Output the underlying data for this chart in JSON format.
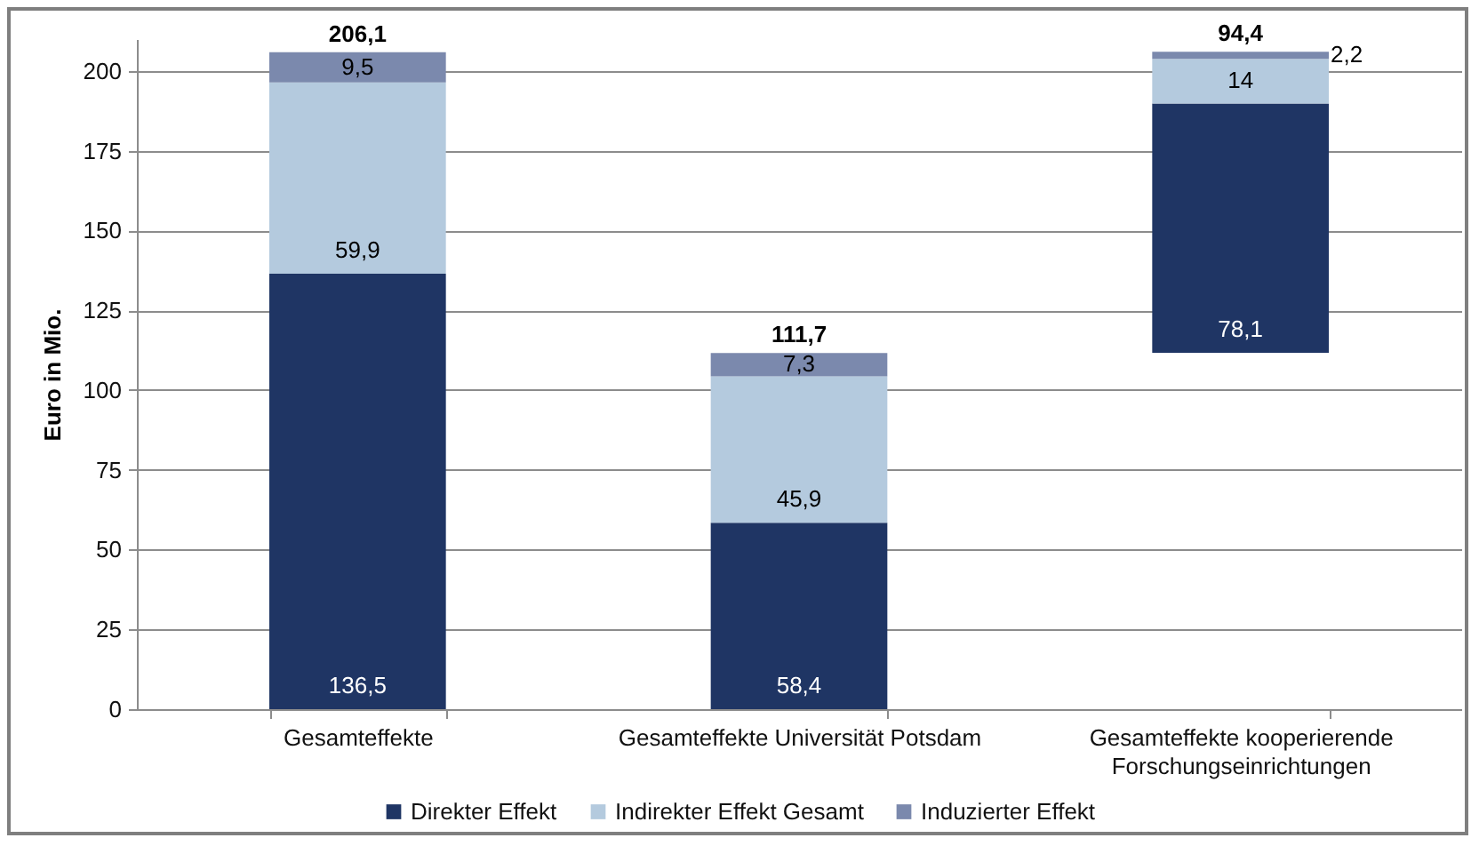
{
  "chart_data": {
    "type": "bar",
    "stacked": true,
    "ylabel": "Euro in Mio.",
    "categories": [
      "Gesamteffekte",
      "Gesamteffekte Universität Potsdam",
      "Gesamteffekte kooperierende Forschungseinrichtungen"
    ],
    "series": [
      {
        "name": "Direkter Effekt",
        "color": "#1f3564",
        "values": [
          136.5,
          58.4,
          78.1
        ],
        "base": [
          0,
          0,
          111.7
        ],
        "value_labels": [
          "136,5",
          "58,4",
          "78,1"
        ]
      },
      {
        "name": "Indirekter Effekt Gesamt",
        "color": "#b4cade",
        "values": [
          59.9,
          45.9,
          14
        ],
        "value_labels": [
          "59,9",
          "45,9",
          "14"
        ]
      },
      {
        "name": "Induzierter Effekt",
        "color": "#7b89ad",
        "values": [
          9.5,
          7.3,
          2.2
        ],
        "value_labels": [
          "9,5",
          "7,3",
          "2,2"
        ]
      }
    ],
    "totals": [
      "206,1",
      "111,7",
      "94,4"
    ],
    "ylim": [
      0,
      210
    ],
    "yticks": [
      0,
      25,
      50,
      75,
      100,
      125,
      150,
      175,
      200
    ],
    "grid": "y",
    "legend": "bottom"
  }
}
